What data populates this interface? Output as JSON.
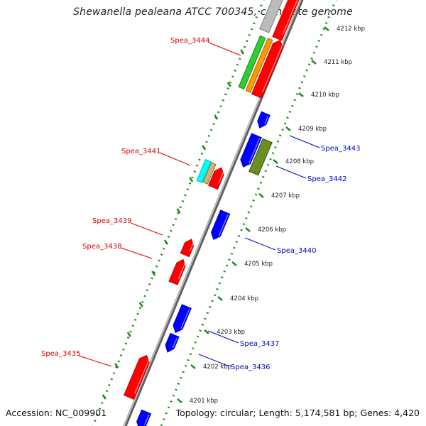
{
  "title": "Shewanella pealeana ATCC 700345, complete genome",
  "footer": {
    "accession_label": "Accession:",
    "accession": "NC_009901",
    "topology_label": "Topology:",
    "topology": "circular;",
    "length_label": "Length:",
    "length": "5,174,581 bp;",
    "genes_label": "Genes:",
    "genes": "4,420"
  },
  "colors": {
    "forward_strand": "#ff0000",
    "reverse_strand": "#0000ff",
    "tick_dots": "#1e8c1e",
    "backbone": "#8c8c8c",
    "forward_label": "#dd0000",
    "reverse_label": "#0000cc"
  },
  "ruler": {
    "ticks": [
      "4212 kbp",
      "4211 kbp",
      "4210 kbp",
      "4209 kbp",
      "4208 kbp",
      "4207 kbp",
      "4206 kbp",
      "4205 kbp",
      "4204 kbp",
      "4203 kbp",
      "4202 kbp",
      "4201 kbp"
    ]
  },
  "gene_labels": {
    "forward": [
      "Spea_3444",
      "Spea_3441",
      "Spea_3439",
      "Spea_3438",
      "Spea_3435"
    ],
    "reverse": [
      "Spea_3443",
      "Spea_3442",
      "Spea_3440",
      "Spea_3437",
      "Spea_3436"
    ]
  },
  "features": {
    "forward_genes": [
      "Spea_3444",
      "Spea_3441",
      "Spea_3439",
      "Spea_3438",
      "Spea_3435"
    ],
    "reverse_genes": [
      "Spea_3443",
      "Spea_3442",
      "Spea_3440",
      "Spea_3437",
      "Spea_3436"
    ],
    "other_tracks": [
      {
        "color": "#33cc33"
      },
      {
        "color": "#ff9900"
      },
      {
        "color": "#00ffff"
      },
      {
        "color": "#c8b478"
      },
      {
        "color": "#6b8e23"
      },
      {
        "color": "#bbbbbb"
      }
    ]
  }
}
